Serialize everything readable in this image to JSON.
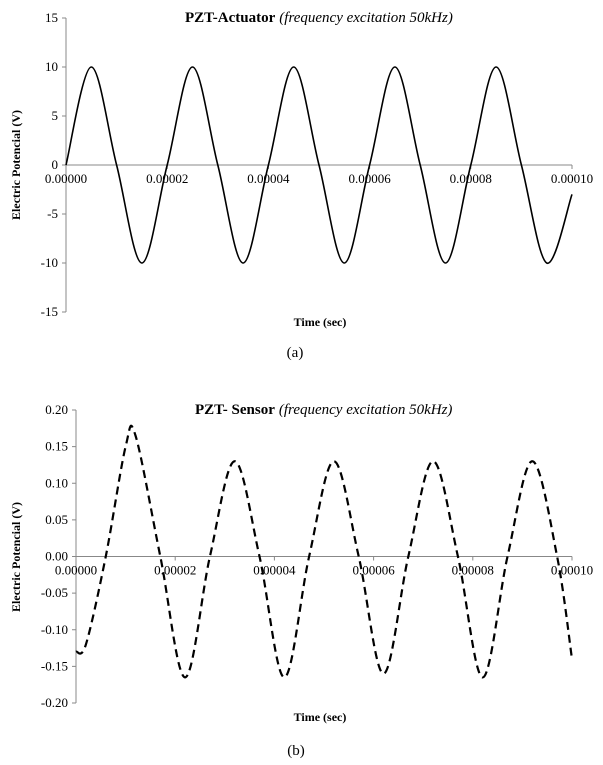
{
  "charts": [
    {
      "caption": "(a)",
      "chart_data": {
        "type": "line",
        "title_main": "PZT-Actuator",
        "title_sub": "(frequency excitation 50kHz)",
        "xlabel": "Time (sec)",
        "ylabel": "Electric Potencial (V)",
        "xlim": [
          0,
          0.0001
        ],
        "ylim": [
          -15,
          15
        ],
        "x_ticks": [
          "0.00000",
          "0.00002",
          "0.00004",
          "0.00006",
          "0.00008",
          "0.00010"
        ],
        "y_ticks": [
          "15",
          "10",
          "5",
          "0",
          "-5",
          "-10",
          "-15"
        ],
        "y_tick_values": [
          15,
          10,
          5,
          0,
          -5,
          -10,
          -15
        ],
        "line_style": "solid",
        "series": [
          {
            "x": [
              0,
              5e-06,
              1e-05,
              1.5e-05,
              2e-05,
              2.5e-05,
              3e-05,
              3.5e-05,
              4e-05,
              4.5e-05,
              5e-05,
              5.5e-05,
              6e-05,
              6.5e-05,
              7e-05,
              7.5e-05,
              8e-05,
              8.5e-05,
              9e-05,
              9.5e-05,
              0.0001
            ],
            "values": [
              0,
              10,
              0,
              -10,
              0,
              10,
              0,
              -10,
              0,
              10,
              0,
              -10,
              0,
              10,
              0,
              -10,
              0,
              10,
              0,
              -10,
              -3
            ]
          }
        ]
      }
    },
    {
      "caption": "(b)",
      "chart_data": {
        "type": "line",
        "title_main": "PZT- Sensor",
        "title_sub": "(frequency excitation 50kHz)",
        "xlabel": "Time (sec)",
        "ylabel": "Electric Potencial (V)",
        "xlim": [
          0,
          0.0001
        ],
        "ylim": [
          -0.2,
          0.2
        ],
        "x_ticks": [
          "0.00000",
          "0.00002",
          "0.00004",
          "0.00006",
          "0.00008",
          "0.00010"
        ],
        "y_ticks": [
          "0.20",
          "0.15",
          "0.10",
          "0.05",
          "0.00",
          "-0.05",
          "-0.10",
          "-0.15",
          "-0.20"
        ],
        "y_tick_values": [
          0.2,
          0.15,
          0.1,
          0.05,
          0,
          -0.05,
          -0.1,
          -0.15,
          -0.2
        ],
        "line_style": "dashed",
        "series": [
          {
            "x": [
              0,
              2e-06,
              6e-06,
              1e-05,
              1.2e-05,
              1.7e-05,
              2.2e-05,
              2.7e-05,
              3.2e-05,
              3.7e-05,
              4.2e-05,
              4.7e-05,
              5.2e-05,
              5.7e-05,
              6.2e-05,
              6.7e-05,
              7.2e-05,
              7.7e-05,
              8.2e-05,
              8.7e-05,
              9.2e-05,
              9.7e-05,
              0.0001
            ],
            "values": [
              -0.13,
              -0.12,
              0.0,
              0.15,
              0.165,
              0.0,
              -0.165,
              0.0,
              0.13,
              0.0,
              -0.165,
              0.0,
              0.13,
              0.0,
              -0.16,
              0.0,
              0.13,
              0.0,
              -0.165,
              0.0,
              0.13,
              0.0,
              -0.14
            ]
          }
        ]
      }
    }
  ]
}
